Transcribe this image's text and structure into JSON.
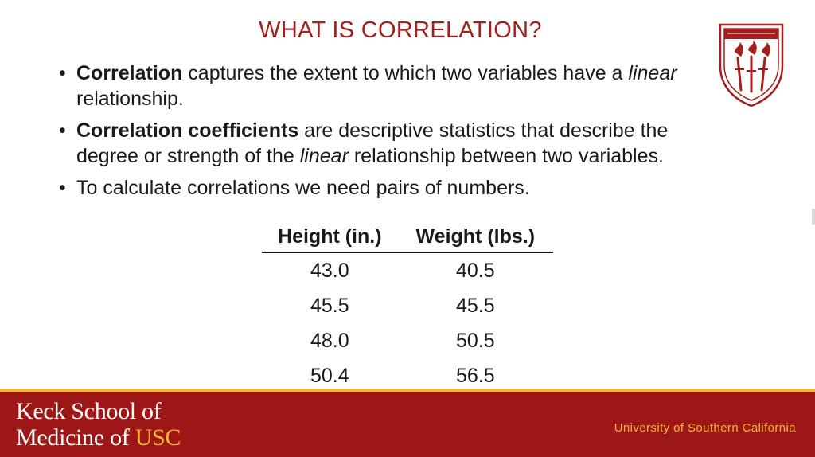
{
  "slide": {
    "title": "WHAT IS CORRELATION?"
  },
  "bullets": [
    {
      "b1": "Correlation",
      "t1": " captures the extent to which two variables have a ",
      "i1": "linear",
      "t2": " relationship."
    },
    {
      "b1": "Correlation coefficients",
      "t1": " are descriptive statistics that describe the degree or strength of the ",
      "i1": "linear",
      "t2": " relationship between two variables."
    },
    {
      "t1": "To calculate correlations we need pairs of numbers."
    }
  ],
  "bullet_glyph": "•",
  "table": {
    "headers": [
      "Height (in.)",
      "Weight (lbs.)"
    ],
    "rows": [
      [
        "43.0",
        "40.5"
      ],
      [
        "45.5",
        "45.5"
      ],
      [
        "48.0",
        "50.5"
      ],
      [
        "50.4",
        "56.5"
      ]
    ]
  },
  "footer": {
    "school_line1": "Keck School of",
    "school_line2_prefix": "Medicine of ",
    "school_line2_usc": "USC",
    "university": "University of Southern California"
  },
  "colors": {
    "title": "#a51d1d",
    "footer_bg": "#9e1717",
    "gold": "#f2b632"
  },
  "icons": {
    "logo": "usc-seal-shield-icon"
  }
}
